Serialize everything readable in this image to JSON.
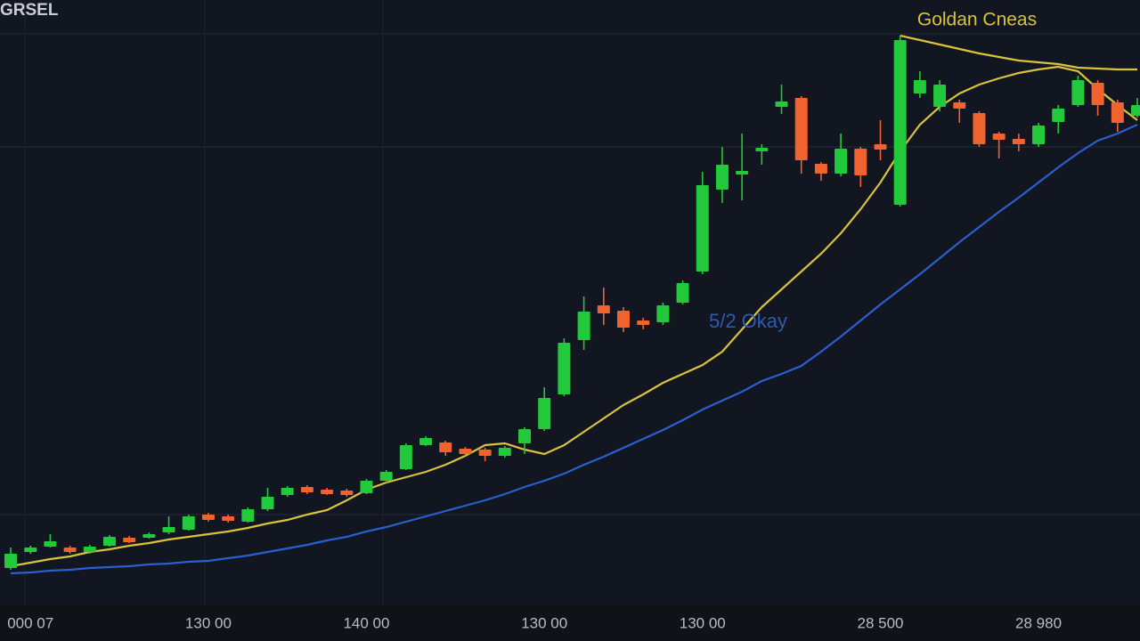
{
  "chart_data": {
    "type": "candlestick",
    "title": "GRSEL",
    "annotations": [
      {
        "text": "Goldan Cneas",
        "color": "#d9c33c"
      },
      {
        "text": "5/2 Okay",
        "color": "#2d5bb0"
      }
    ],
    "categories": [
      null,
      "000 07",
      null,
      null,
      null,
      null,
      null,
      null,
      null,
      null,
      "130 00",
      null,
      null,
      null,
      null,
      null,
      null,
      null,
      "140 00",
      null,
      null,
      null,
      null,
      null,
      null,
      null,
      null,
      "130 00",
      null,
      null,
      null,
      null,
      null,
      null,
      null,
      "130 00",
      null,
      null,
      null,
      null,
      null,
      null,
      null,
      null,
      "28 500",
      null,
      null,
      null,
      null,
      null,
      null,
      null,
      "28 980",
      null,
      null,
      null,
      null,
      null
    ],
    "open": [
      42,
      60,
      66,
      65,
      60,
      67,
      76,
      76,
      82,
      85,
      102,
      100,
      94,
      108,
      124,
      133,
      130,
      129,
      126,
      140,
      153,
      180,
      183,
      176,
      175,
      168,
      182,
      198,
      237,
      298,
      337,
      331,
      320,
      318,
      340,
      375,
      467,
      484,
      510,
      560,
      570,
      496,
      485,
      513,
      518,
      450,
      575,
      560,
      565,
      553,
      530,
      524,
      518,
      543,
      562,
      587,
      565,
      550
    ],
    "high": [
      65,
      67,
      80,
      67,
      68,
      79,
      78,
      82,
      100,
      102,
      104,
      102,
      110,
      132,
      134,
      135,
      132,
      131,
      142,
      152,
      182,
      190,
      185,
      178,
      177,
      179,
      200,
      245,
      300,
      347,
      357,
      335,
      323,
      340,
      365,
      487,
      515,
      530,
      518,
      585,
      572,
      498,
      530,
      515,
      545,
      640,
      600,
      590,
      568,
      555,
      532,
      530,
      542,
      562,
      595,
      590,
      568,
      570
    ],
    "low": [
      40,
      58,
      65,
      58,
      58,
      66,
      70,
      75,
      80,
      84,
      94,
      93,
      93,
      106,
      122,
      125,
      124,
      122,
      125,
      138,
      152,
      179,
      168,
      168,
      162,
      166,
      170,
      196,
      235,
      287,
      315,
      307,
      310,
      315,
      338,
      372,
      452,
      455,
      495,
      552,
      485,
      477,
      482,
      470,
      500,
      448,
      570,
      555,
      542,
      515,
      502,
      510,
      515,
      530,
      560,
      550,
      532,
      548
    ],
    "close": [
      58,
      65,
      72,
      60,
      66,
      77,
      71,
      80,
      88,
      100,
      96,
      95,
      108,
      122,
      132,
      127,
      125,
      124,
      140,
      150,
      180,
      188,
      172,
      170,
      168,
      177,
      198,
      233,
      295,
      330,
      328,
      312,
      315,
      337,
      362,
      472,
      495,
      488,
      514,
      566,
      500,
      485,
      513,
      483,
      512,
      635,
      590,
      585,
      558,
      518,
      523,
      518,
      539,
      558,
      590,
      562,
      542,
      562
    ],
    "up_color": "#22c93a",
    "down_color": "#f0622e",
    "series": [
      {
        "color": "#d9c33c",
        "values": [
          44,
          48,
          52,
          55,
          60,
          63,
          67,
          70,
          74,
          77,
          80,
          83,
          87,
          92,
          96,
          102,
          107,
          118,
          130,
          138,
          144,
          150,
          158,
          168,
          180,
          182,
          175,
          170,
          180,
          195,
          210,
          225,
          237,
          250,
          260,
          270,
          285,
          310,
          335,
          355,
          375,
          395,
          418,
          445,
          475,
          510,
          540,
          560,
          575,
          585,
          592,
          598,
          602,
          605,
          600,
          580,
          562,
          545
        ]
      },
      {
        "color": "#2a5fd0",
        "values": [
          36,
          37,
          39,
          40,
          42,
          43,
          44,
          46,
          47,
          49,
          50,
          53,
          56,
          60,
          64,
          68,
          73,
          77,
          83,
          88,
          94,
          100,
          106,
          112,
          118,
          125,
          133,
          140,
          148,
          158,
          167,
          177,
          187,
          197,
          208,
          220,
          230,
          240,
          252,
          260,
          269,
          285,
          302,
          320,
          338,
          355,
          372,
          390,
          408,
          425,
          442,
          458,
          475,
          492,
          508,
          522,
          530,
          540
        ]
      },
      {
        "color": "#d9c33c",
        "values": [
          null,
          null,
          null,
          null,
          null,
          null,
          null,
          null,
          null,
          null,
          null,
          null,
          null,
          null,
          null,
          null,
          null,
          null,
          null,
          null,
          null,
          null,
          null,
          null,
          null,
          null,
          null,
          null,
          null,
          null,
          null,
          null,
          null,
          null,
          null,
          null,
          null,
          null,
          null,
          null,
          null,
          null,
          null,
          null,
          null,
          640,
          635,
          630,
          625,
          620,
          616,
          612,
          610,
          608,
          604,
          603,
          602,
          602
        ]
      }
    ],
    "ylim": [
      0,
      680
    ],
    "yticks": [
      102,
      515,
      642
    ],
    "grid": true
  }
}
